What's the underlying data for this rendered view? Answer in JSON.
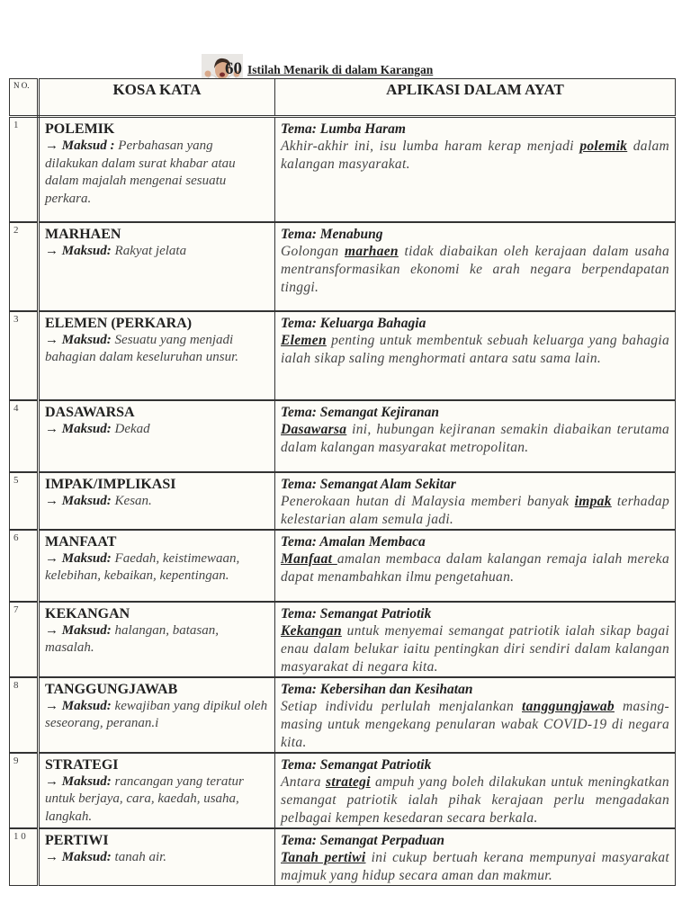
{
  "title": {
    "number": "60",
    "text": "Istilah Menarik di dalam Karangan"
  },
  "headers": {
    "no": "N O.",
    "kosa_kata": "KOSA KATA",
    "aplikasi": "APLIKASI DALAM AYAT"
  },
  "maksud_label": "Maksud",
  "arrow": "→",
  "rows": [
    {
      "no": "1",
      "word": "POLEMIK",
      "sep": " : ",
      "meaning": "Perbahasan yang dilakukan dalam surat khabar atau dalam majalah mengenai sesuatu perkara.",
      "tema": "Tema: Lumba Haram",
      "before": "Akhir-akhir ini, isu lumba haram kerap menjadi ",
      "keyword": "polemik",
      "after": " dalam kalangan masyarakat."
    },
    {
      "no": "2",
      "word": "MARHAEN",
      "sep": ": ",
      "meaning": "Rakyat jelata",
      "tema": "Tema: Menabung",
      "before": "Golongan ",
      "keyword": "marhaen",
      "after": " tidak diabaikan oleh kerajaan dalam usaha mentransformasikan ekonomi ke arah negara berpendapatan tinggi."
    },
    {
      "no": "3",
      "word": "ELEMEN (PERKARA)",
      "sep": ": ",
      "meaning": "Sesuatu yang menjadi bahagian dalam keseluruhan unsur.",
      "tema": "Tema: Keluarga Bahagia",
      "before": "",
      "keyword": "Elemen",
      "after": " penting untuk membentuk sebuah keluarga yang bahagia ialah sikap saling menghormati antara satu sama lain."
    },
    {
      "no": "4",
      "word": "DASAWARSA",
      "sep": ": ",
      "meaning": "Dekad",
      "tema": "Tema: Semangat Kejiranan",
      "before": "",
      "keyword": "Dasawarsa",
      "after": " ini, hubungan kejiranan semakin diabaikan terutama dalam kalangan masyarakat metropolitan."
    },
    {
      "no": "5",
      "word": "IMPAK/IMPLIKASI",
      "sep": ": ",
      "meaning": "Kesan.",
      "tema": "Tema: Semangat Alam Sekitar",
      "before": "Penerokaan hutan di Malaysia memberi banyak ",
      "keyword": "impak",
      "after": " terhadap kelestarian alam semula jadi."
    },
    {
      "no": "6",
      "word": "MANFAAT",
      "sep": ": ",
      "meaning": "Faedah, keistimewaan, kelebihan, kebaikan, kepentingan.",
      "tema": "Tema: Amalan Membaca",
      "before": "",
      "keyword": "Manfaat ",
      "after": "amalan membaca dalam kalangan remaja ialah mereka dapat menambahkan ilmu pengetahuan."
    },
    {
      "no": "7",
      "word": "KEKANGAN",
      "sep": ": ",
      "meaning": "halangan, batasan, masalah.",
      "tema": "Tema: Semangat Patriotik",
      "before": "",
      "keyword": "Kekangan",
      "after": " untuk menyemai semangat patriotik ialah sikap bagai enau dalam belukar iaitu pentingkan diri sendiri dalam kalangan masyarakat di negara kita."
    },
    {
      "no": "8",
      "word": "TANGGUNGJAWAB",
      "sep": ": ",
      "meaning": "kewajiban yang dipikul oleh seseorang, peranan.i",
      "tema": "Tema: Kebersihan dan Kesihatan",
      "before": "Setiap individu perlulah menjalankan ",
      "keyword": "tanggungjawab",
      "after": " masing-masing untuk mengekang penularan wabak COVID-19 di negara kita."
    },
    {
      "no": "9",
      "word": "STRATEGI",
      "sep": ": ",
      "meaning": "rancangan yang teratur untuk berjaya, cara, kaedah, usaha, langkah.",
      "tema": "Tema: Semangat Patriotik",
      "before": "Antara ",
      "keyword": "strategi",
      "after": " ampuh yang boleh dilakukan untuk meningkatkan semangat patriotik ialah pihak kerajaan perlu mengadakan pelbagai kempen kesedaran secara berkala."
    },
    {
      "no": "1 0",
      "word": "PERTIWI",
      "sep": ": ",
      "meaning": "tanah air.",
      "tema": "Tema: Semangat Perpaduan",
      "before": "",
      "keyword": "Tanah pertiwi",
      "after": " ini cukup bertuah kerana mempunyai masyarakat majmuk yang hidup secara aman dan makmur."
    }
  ]
}
